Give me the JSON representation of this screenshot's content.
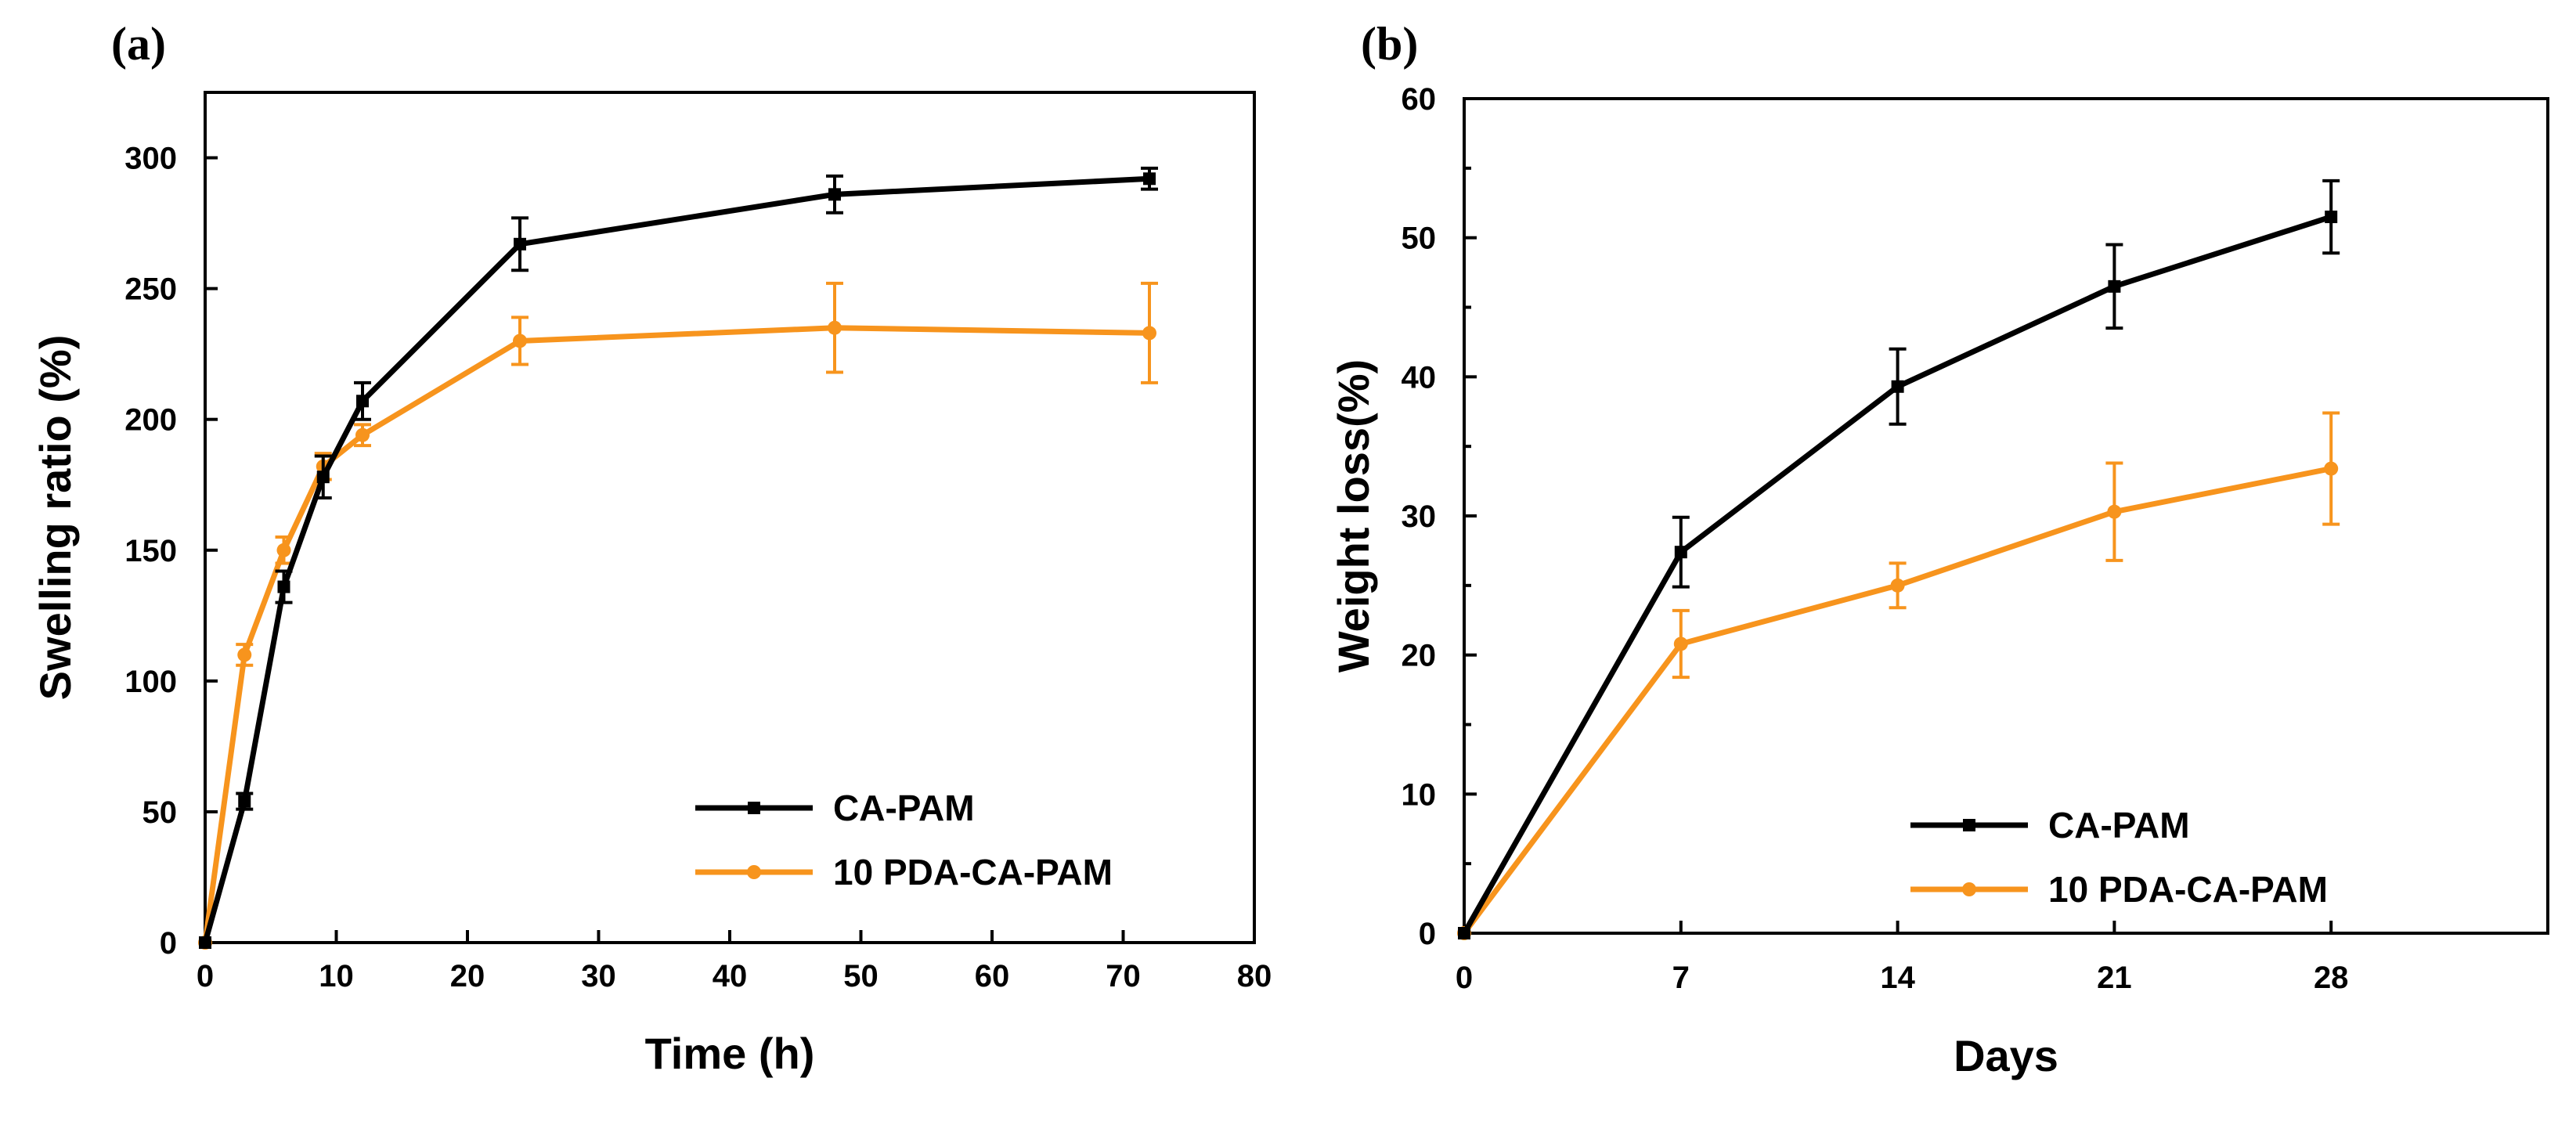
{
  "chart_data": [
    {
      "panel": "(a)",
      "type": "line",
      "xlabel": "Time (h)",
      "ylabel": "Swelling ratio (%)",
      "xlim": [
        0,
        80
      ],
      "ylim": [
        0,
        325
      ],
      "xticks": [
        0,
        10,
        20,
        30,
        40,
        50,
        60,
        70,
        80
      ],
      "yticks": [
        0,
        50,
        100,
        150,
        200,
        250,
        300
      ],
      "grid": false,
      "legend_position": "bottom-right",
      "series": [
        {
          "name": "CA-PAM",
          "color": "#000000",
          "marker": "square",
          "x": [
            0,
            3,
            6,
            9,
            12,
            24,
            48,
            72
          ],
          "y": [
            0,
            54,
            136,
            178,
            207,
            267,
            286,
            292
          ],
          "err": [
            0,
            3,
            6,
            8,
            7,
            10,
            7,
            4
          ]
        },
        {
          "name": "10 PDA-CA-PAM",
          "color": "#F7941D",
          "marker": "circle",
          "x": [
            0,
            3,
            6,
            9,
            12,
            24,
            48,
            72
          ],
          "y": [
            0,
            110,
            150,
            182,
            194,
            230,
            235,
            233
          ],
          "err": [
            0,
            4,
            5,
            5,
            4,
            9,
            17,
            19
          ]
        }
      ]
    },
    {
      "panel": "(b)",
      "type": "line",
      "xlabel": "Days",
      "ylabel": "Weight loss(%)",
      "xlim": [
        0,
        35
      ],
      "ylim": [
        0,
        60
      ],
      "xticks": [
        0,
        7,
        14,
        21,
        28
      ],
      "yticks": [
        0,
        10,
        20,
        30,
        40,
        50,
        60
      ],
      "grid": false,
      "legend_position": "bottom-right",
      "series": [
        {
          "name": "CA-PAM",
          "color": "#000000",
          "marker": "square",
          "x": [
            0,
            7,
            14,
            21,
            28
          ],
          "y": [
            0,
            27.4,
            39.3,
            46.5,
            51.5
          ],
          "err": [
            0,
            2.5,
            2.7,
            3.0,
            2.6
          ]
        },
        {
          "name": "10 PDA-CA-PAM",
          "color": "#F7941D",
          "marker": "circle",
          "x": [
            0,
            7,
            14,
            21,
            28
          ],
          "y": [
            0,
            20.8,
            25.0,
            30.3,
            33.4
          ],
          "err": [
            0,
            2.4,
            1.6,
            3.5,
            4.0
          ]
        }
      ]
    }
  ]
}
